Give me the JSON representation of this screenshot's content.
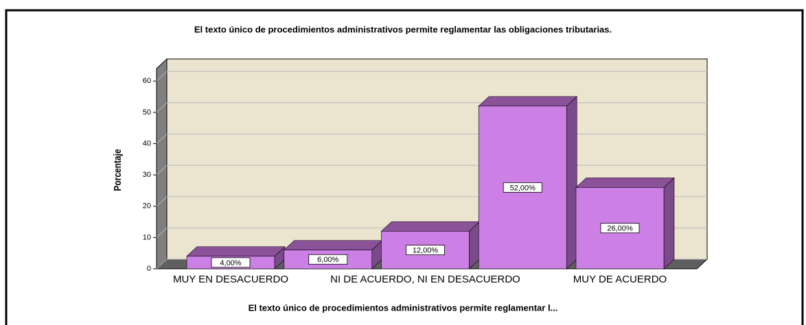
{
  "chart_data": {
    "type": "bar3d",
    "title": "El texto único de procedimientos administrativos permite reglamentar las obligaciones tributarias.",
    "x_label": "El texto único de procedimientos administrativos permite reglamentar l...",
    "y_label": "Porcentaje",
    "categories": [
      "MUY EN DESACUERDO",
      null,
      "NI DE ACUERDO, NI EN DESACUERDO",
      null,
      "MUY DE ACUERDO"
    ],
    "values": [
      4,
      6,
      12,
      52,
      26
    ],
    "value_labels": [
      "4,00%",
      "6,00%",
      "12,00%",
      "52,00%",
      "26,00%"
    ],
    "color": "#cc80e6",
    "ylim": [
      0,
      64
    ],
    "yticks": [
      0,
      10,
      20,
      30,
      40,
      50,
      60
    ],
    "grid": true
  }
}
